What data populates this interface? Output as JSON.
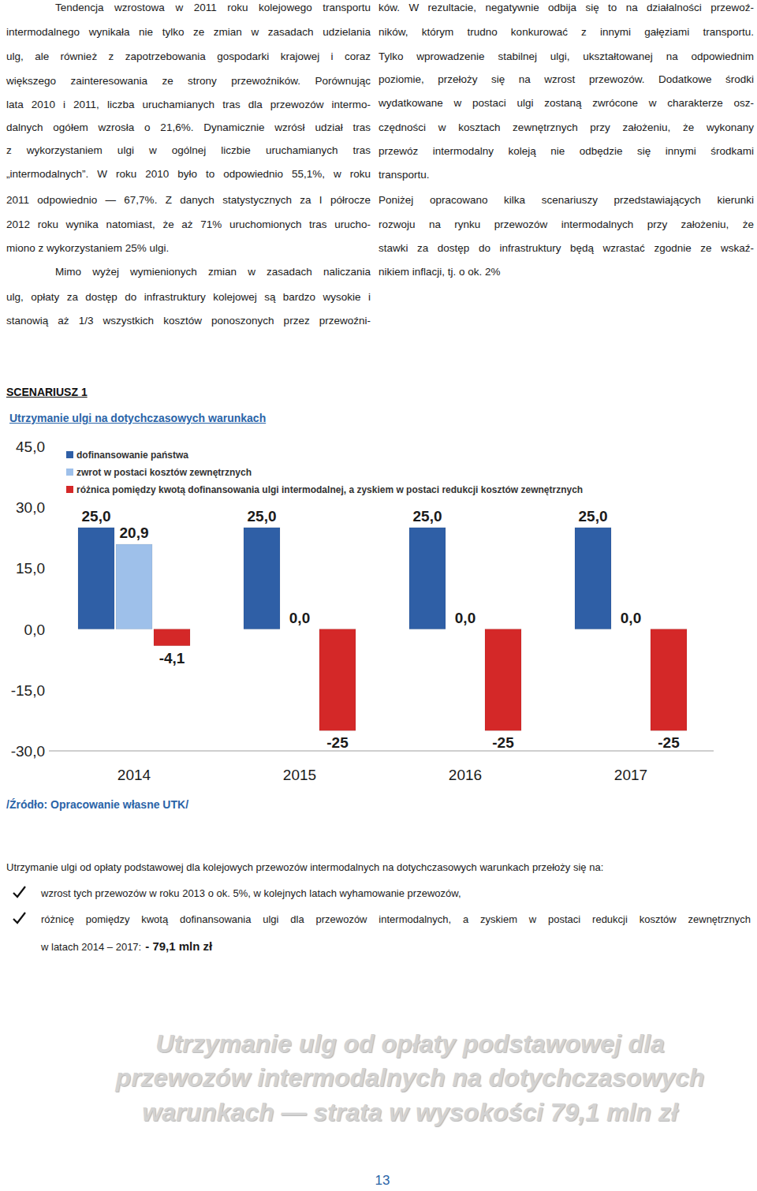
{
  "left_column": {
    "lines": [
      "Tendencja wzrostowa w 2011 roku kolejowego transportu",
      "intermodalnego wynikała nie tylko ze zmian w zasadach udzielania",
      "ulg, ale również z zapotrzebowania gospodarki krajowej i coraz",
      "większego zainteresowania ze strony przewoźników. Porównując",
      "lata 2010 i 2011, liczba uruchamianych tras dla przewozów intermo-",
      "dalnych ogółem wzrosła o 21,6%. Dynamicznie wzrósł udział tras",
      "z wykorzystaniem ulgi w ogólnej liczbie uruchamianych tras",
      "„intermodalnych”. W roku 2010 było to odpowiednio 55,1%, w roku",
      "2011 odpowiednio — 67,7%. Z danych statystycznych za I półrocze",
      "2012 roku wynika natomiast, że aż 71% uruchomionych tras urucho-",
      "miono z wykorzystaniem 25% ulgi.",
      "Mimo wyżej wymienionych zmian w zasadach naliczania",
      "ulg, opłaty za dostęp do infrastruktury kolejowej są bardzo wysokie i",
      "stanowią aż 1/3 wszystkich kosztów ponoszonych przez przewoźni-"
    ]
  },
  "right_column": {
    "lines": [
      "ków. W rezultacie, negatywnie odbija się to na działalności przewoź-",
      "ników, którym trudno konkurować z innymi gałęziami transportu.",
      "Tylko wprowadzenie stabilnej ulgi, ukształtowanej na odpowiednim",
      "poziomie, przełoży się na wzrost przewozów. Dodatkowe środki",
      "wydatkowane w postaci ulgi zostaną zwrócone w charakterze osz-",
      "czędności w kosztach zewnętrznych przy założeniu, że wykonany",
      "przewóz intermodalny koleją nie odbędzie się innymi środkami",
      "transportu.",
      "Poniżej opracowano kilka scenariuszy przedstawiających kierunki",
      "rozwoju na rynku przewozów intermodalnych przy założeniu, że",
      "stawki za dostęp do infrastruktury będą wzrastać zgodnie ze wskaź-",
      "nikiem inflacji, tj. o ok. 2%"
    ]
  },
  "scenario": {
    "heading": "SCENARIUSZ 1",
    "title": "Utrzymanie ulgi na dotychczasowych warunkach"
  },
  "chart_data": {
    "type": "bar",
    "categories": [
      "2014",
      "2015",
      "2016",
      "2017"
    ],
    "series": [
      {
        "name": "dofinansowanie państwa",
        "color": "#2f5fa6",
        "values": [
          25,
          25,
          25,
          25
        ],
        "value_labels": [
          "25,0",
          "25,0",
          "25,0",
          "25,0"
        ]
      },
      {
        "name": "zwrot w postaci kosztów zewnętrznych",
        "color": "#9ec0ea",
        "values": [
          20.9,
          0,
          0,
          0
        ],
        "value_labels": [
          "20,9",
          "0,0",
          "0,0",
          "0,0"
        ]
      },
      {
        "name": "różnica pomiędzy kwotą dofinansowania ulgi intermodalnej, a zyskiem w postaci redukcji kosztów zewnętrznych",
        "color": "#d42828",
        "values": [
          -4.1,
          -25,
          -25,
          -25
        ],
        "value_labels": [
          "-4,1",
          "-25",
          "-25",
          "-25"
        ]
      }
    ],
    "ylim": [
      -30,
      45
    ],
    "yticks": [
      {
        "value": 45,
        "label": "45,0"
      },
      {
        "value": 30,
        "label": "30,0"
      },
      {
        "value": 15,
        "label": "15,0"
      },
      {
        "value": 0,
        "label": "0,0"
      },
      {
        "value": -15,
        "label": "-15,0"
      },
      {
        "value": -30,
        "label": "-30,0"
      }
    ],
    "grid": false,
    "legend": "top-left",
    "data_labels": true
  },
  "source": "/Źródło: Opracowanie własne UTK/",
  "summary": {
    "intro": "Utrzymanie ulgi od opłaty podstawowej dla kolejowych przewozów intermodalnych na dotychczasowych warunkach przełoży się na:",
    "bullets": [
      {
        "lines": [
          "wzrost tych przewozów w roku 2013 o ok. 5%, w kolejnych latach wyhamowanie przewozów,"
        ]
      },
      {
        "lines": [
          "różnicę pomiędzy kwotą dofinansowania ulgi dla przewozów intermodalnych, a zyskiem w postaci redukcji kosztów zewnętrznych",
          "w latach 2014 – 2017:"
        ],
        "emphasis": "- 79,1 mln zł"
      }
    ]
  },
  "banner": {
    "lines": [
      "Utrzymanie ulg od opłaty podstawowej dla",
      "przewozów intermodalnych na dotychczasowych",
      "warunkach — strata w wysokości 79,1 mln zł"
    ]
  },
  "page_number": "13"
}
